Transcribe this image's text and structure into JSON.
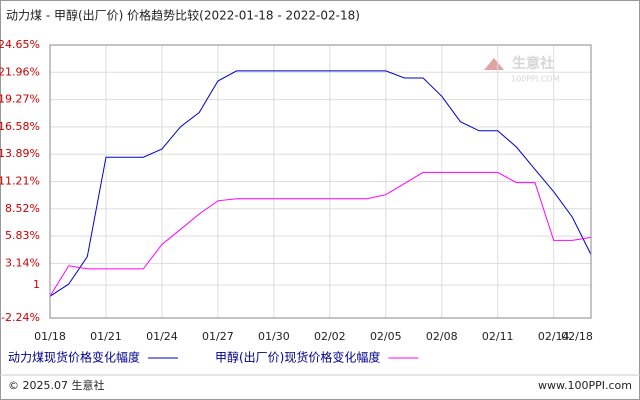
{
  "chart_data": {
    "type": "line",
    "title": "动力煤 - 甲醇(出厂价) 价格趋势比较(2022-01-18 - 2022-02-18)",
    "categories": [
      "01/18",
      null,
      null,
      "01/21",
      null,
      null,
      "01/24",
      null,
      null,
      "01/27",
      null,
      null,
      "01/30",
      null,
      null,
      "02/02",
      null,
      null,
      "02/05",
      null,
      null,
      "02/08",
      null,
      null,
      "02/11",
      null,
      null,
      "02/14",
      null,
      "02/18"
    ],
    "series": [
      {
        "name": "动力煤现货价格变化幅度",
        "color": "#0000cc",
        "values": [
          -0.1,
          1.1,
          3.8,
          13.6,
          13.6,
          13.6,
          14.4,
          16.6,
          18.0,
          21.1,
          22.1,
          22.1,
          22.1,
          22.1,
          22.1,
          22.1,
          22.1,
          22.1,
          22.1,
          21.4,
          21.4,
          19.6,
          17.1,
          16.2,
          16.2,
          14.6,
          12.4,
          10.2,
          7.7,
          4.0
        ]
      },
      {
        "name": "甲醇(出厂价)现货价格变化幅度",
        "color": "#ff00ff",
        "values": [
          -0.1,
          2.9,
          2.6,
          2.6,
          2.6,
          2.6,
          5.0,
          6.5,
          8.0,
          9.3,
          9.5,
          9.5,
          9.5,
          9.5,
          9.5,
          9.5,
          9.5,
          9.5,
          9.9,
          11.0,
          12.1,
          12.1,
          12.1,
          12.1,
          12.1,
          11.1,
          11.1,
          5.4,
          5.4,
          5.7
        ]
      }
    ],
    "ylim": [
      -2.24,
      24.65
    ],
    "yticks": [
      {
        "value": -2.24,
        "label": "-2.24%"
      },
      1,
      {
        "value": 3.14,
        "label": "3.14%"
      },
      {
        "value": 5.83,
        "label": "5.83%"
      },
      {
        "value": 8.52,
        "label": "8.52%"
      },
      {
        "value": 11.21,
        "label": "11.21%"
      },
      {
        "value": 13.89,
        "label": "13.89%"
      },
      {
        "value": 16.58,
        "label": "16.58%"
      },
      {
        "value": 19.27,
        "label": "19.27%"
      },
      {
        "value": 21.96,
        "label": "21.96%"
      },
      {
        "value": 24.65,
        "label": "24.65%"
      }
    ],
    "grid": true,
    "watermark": {
      "name": "生意社",
      "site": "100PPI.COM"
    },
    "footer": {
      "copyright": "© 2025.07 生意社",
      "site": "www.100PPI.com"
    }
  }
}
